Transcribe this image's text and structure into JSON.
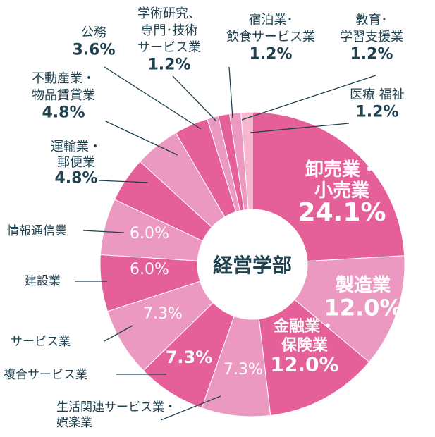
{
  "chart_data": {
    "type": "pie",
    "title": "",
    "center_label": "経営学部",
    "slices": [
      {
        "lines": [
          "卸売業・",
          "小売業"
        ],
        "value": 24.1,
        "label": "24.1%",
        "color": "#e55f98"
      },
      {
        "lines": [
          "製造業"
        ],
        "value": 12.0,
        "label": "12.0%",
        "color": "#eb99c1"
      },
      {
        "lines": [
          "金融業・",
          "保険業"
        ],
        "value": 12.0,
        "label": "12.0%",
        "color": "#e55f98"
      },
      {
        "lines": [
          "生活関連サービス業・",
          "娯楽業"
        ],
        "value": 7.3,
        "label": "7.3%",
        "color": "#eb99c1"
      },
      {
        "lines": [
          "複合サービス業"
        ],
        "value": 7.3,
        "label": "7.3%",
        "color": "#e55f98"
      },
      {
        "lines": [
          "サービス業"
        ],
        "value": 7.3,
        "label": "7.3%",
        "color": "#eb99c1"
      },
      {
        "lines": [
          "建設業"
        ],
        "value": 6.0,
        "label": "6.0%",
        "color": "#e55f98"
      },
      {
        "lines": [
          "情報通信業"
        ],
        "value": 6.0,
        "label": "6.0%",
        "color": "#eb99c1"
      },
      {
        "lines": [
          "運輸業・",
          "郵便業"
        ],
        "value": 4.8,
        "label": "4.8%",
        "color": "#e55f98"
      },
      {
        "lines": [
          "不動産業・",
          "物品賃貸業"
        ],
        "value": 4.8,
        "label": "4.8%",
        "color": "#eb99c1"
      },
      {
        "lines": [
          "公務"
        ],
        "value": 3.6,
        "label": "3.6%",
        "color": "#e55f98"
      },
      {
        "lines": [
          "学術研究、",
          "専門･技術",
          "サービス業"
        ],
        "value": 1.2,
        "label": "1.2%",
        "color": "#eb99c1"
      },
      {
        "lines": [
          "宿泊業･",
          "飲食サービス業"
        ],
        "value": 1.2,
        "label": "1.2%",
        "color": "#e55f98"
      },
      {
        "lines": [
          "教育･",
          "学習支援業"
        ],
        "value": 1.2,
        "label": "1.2%",
        "color": "#eb99c1"
      },
      {
        "lines": [
          "医療 福祉"
        ],
        "value": 1.2,
        "label": "1.2%",
        "color": "#f6b7cf"
      }
    ]
  },
  "colors": {
    "label_text": "#1f4150",
    "leader_line": "#1f4150",
    "inside_text": "#ffffff",
    "center_text": "#1f4150"
  }
}
